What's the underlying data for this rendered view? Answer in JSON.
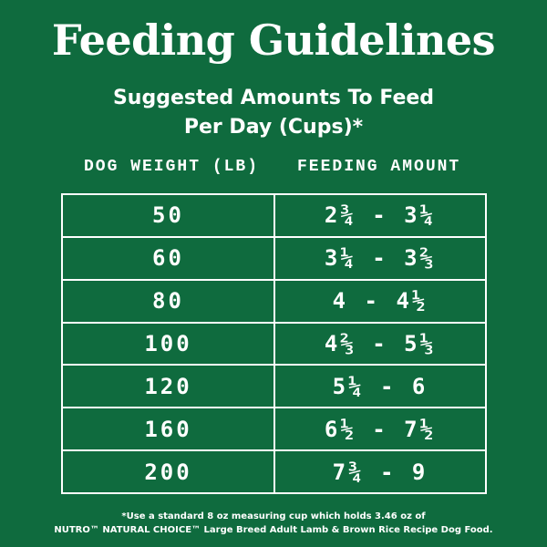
{
  "title": "Feeding Guidelines",
  "subtitle": {
    "line1": "Suggested Amounts To Feed",
    "line2": "Per Day (Cups)*"
  },
  "table": {
    "headers": {
      "weight": "DOG WEIGHT (LB)",
      "amount": "FEEDING AMOUNT"
    },
    "rows": [
      {
        "weight": "50",
        "amount": "2¾ - 3¼"
      },
      {
        "weight": "60",
        "amount": "3¼ - 3⅔"
      },
      {
        "weight": "80",
        "amount": "4 - 4½"
      },
      {
        "weight": "100",
        "amount": "4⅔ - 5⅓"
      },
      {
        "weight": "120",
        "amount": "5¼ - 6"
      },
      {
        "weight": "160",
        "amount": "6½ - 7½"
      },
      {
        "weight": "200",
        "amount": "7¾ - 9"
      }
    ]
  },
  "footnote": {
    "line1": "*Use a standard 8 oz measuring cup which holds 3.46 oz of",
    "line2": "NUTRO™ NATURAL CHOICE™ Large Breed Adult Lamb & Brown Rice Recipe Dog Food."
  },
  "colors": {
    "background": "#0f6b3e",
    "text": "#ffffff"
  }
}
